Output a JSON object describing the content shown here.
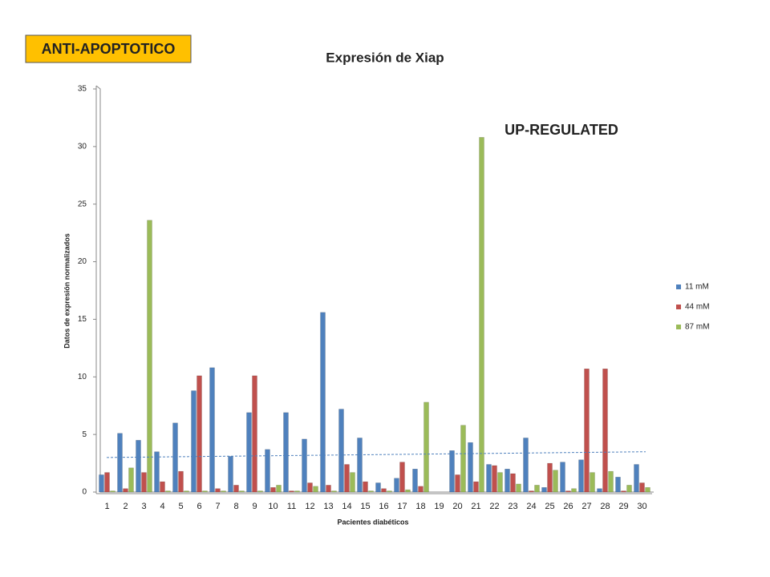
{
  "badge": "ANTI-APOPTOTICO",
  "chart_data": {
    "type": "bar",
    "title": "Expresión de Xiap",
    "annotation": "UP-REGULATED",
    "x_label": "Pacientes diabéticos",
    "y_label": "Datos de expresión normalizados",
    "categories": [
      "1",
      "2",
      "3",
      "4",
      "5",
      "6",
      "7",
      "8",
      "9",
      "10",
      "11",
      "12",
      "13",
      "14",
      "15",
      "16",
      "17",
      "18",
      "19",
      "20",
      "21",
      "22",
      "23",
      "24",
      "25",
      "26",
      "27",
      "28",
      "29",
      "30"
    ],
    "series": [
      {
        "name": "11 mM",
        "color": "#4f81bd",
        "values": [
          1.5,
          5.1,
          4.5,
          3.5,
          6.0,
          8.8,
          10.8,
          3.1,
          6.9,
          3.7,
          6.9,
          4.6,
          15.6,
          7.2,
          4.7,
          0.8,
          1.2,
          2.0,
          0,
          3.6,
          4.3,
          2.4,
          2.0,
          4.7,
          0.4,
          2.6,
          2.8,
          0.3,
          1.3,
          2.4
        ]
      },
      {
        "name": "44 mM",
        "color": "#c0504d",
        "values": [
          1.7,
          0.3,
          1.7,
          0.9,
          1.8,
          10.1,
          0.3,
          0.6,
          10.1,
          0.4,
          0.1,
          0.8,
          0.6,
          2.4,
          0.9,
          0.3,
          2.6,
          0.5,
          0,
          1.5,
          0.9,
          2.3,
          1.6,
          0.1,
          2.5,
          0.1,
          10.7,
          10.7,
          0.1,
          0.8
        ]
      },
      {
        "name": "87 mM",
        "color": "#9bbb59",
        "values": [
          0.1,
          2.1,
          23.6,
          0.1,
          0.1,
          0.1,
          0.1,
          0.1,
          0.1,
          0.6,
          0.1,
          0.5,
          0.1,
          1.7,
          0.1,
          0.1,
          0.2,
          7.8,
          0,
          5.8,
          30.8,
          1.7,
          0.7,
          0.6,
          1.9,
          0.3,
          1.7,
          1.8,
          0.6,
          0.4
        ]
      }
    ],
    "trendline": {
      "color": "#4f81bd",
      "values": [
        3.0,
        3.5
      ]
    },
    "ylim": [
      0,
      35
    ],
    "yticks": [
      0,
      5,
      10,
      15,
      20,
      25,
      30,
      35
    ],
    "legend": "right"
  }
}
